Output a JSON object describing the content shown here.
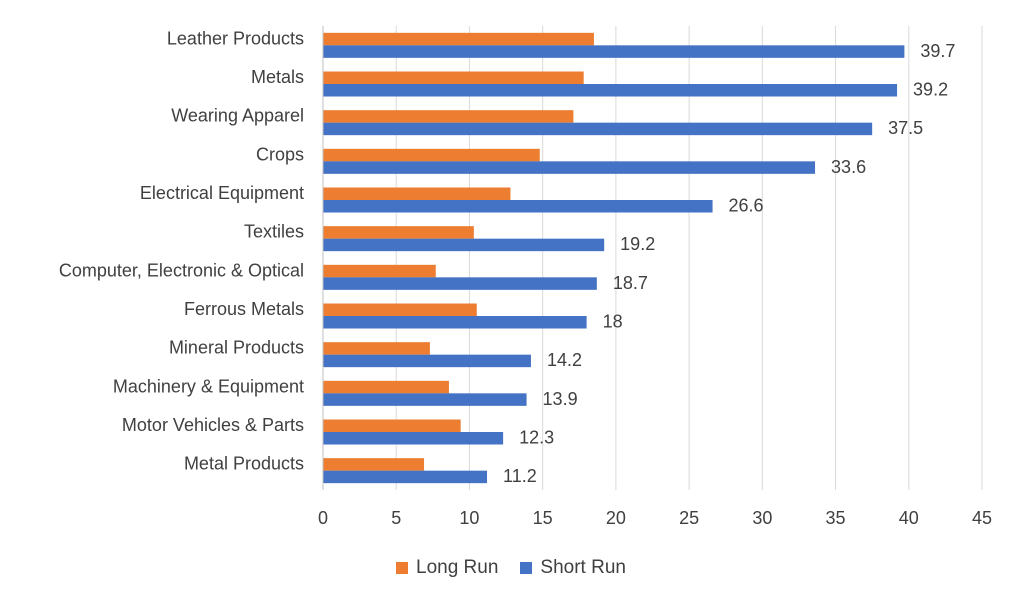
{
  "chart_data": {
    "type": "bar",
    "orientation": "horizontal",
    "categories": [
      "Leather Products",
      "Metals",
      "Wearing Apparel",
      "Crops",
      "Electrical Equipment",
      "Textiles",
      "Computer, Electronic & Optical",
      "Ferrous Metals",
      "Mineral Products",
      "Machinery & Equipment",
      "Motor Vehicles & Parts",
      "Metal Products"
    ],
    "series": [
      {
        "name": "Long Run",
        "color": "#ED7D31",
        "values": [
          18.5,
          17.8,
          17.1,
          14.8,
          12.8,
          10.3,
          7.7,
          10.5,
          7.3,
          8.6,
          9.4,
          6.9
        ]
      },
      {
        "name": "Short Run",
        "color": "#4472C4",
        "values": [
          39.7,
          39.2,
          37.5,
          33.6,
          26.6,
          19.2,
          18.7,
          18,
          14.2,
          13.9,
          12.3,
          11.2
        ],
        "data_labels": [
          "39.7",
          "39.2",
          "37.5",
          "33.6",
          "26.6",
          "19.2",
          "18.7",
          "18",
          "14.2",
          "13.9",
          "12.3",
          "11.2"
        ]
      }
    ],
    "xlim": [
      0,
      45
    ],
    "x_ticks": [
      "0",
      "5",
      "10",
      "15",
      "20",
      "25",
      "30",
      "35",
      "40",
      "45"
    ],
    "grid": "vertical",
    "legend": "bottom",
    "title": "",
    "xlabel": "",
    "ylabel": ""
  }
}
